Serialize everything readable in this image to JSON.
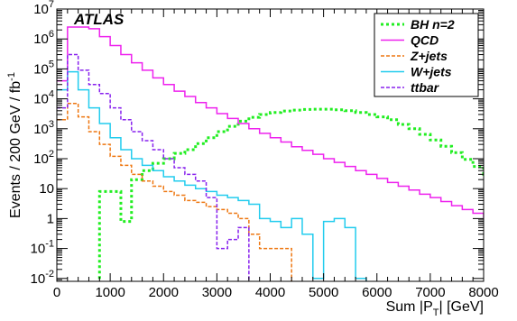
{
  "chart_data": {
    "type": "line",
    "title": "",
    "annotation": "ATLAS",
    "xlabel": "Sum |P",
    "xlabel_sub": "T",
    "xlabel_tail": "| [GeV]",
    "ylabel": "Events /  200 GeV / fb",
    "ylabel_sup": "-1",
    "xlim": [
      0,
      8000
    ],
    "ylim": [
      0.008,
      10000000
    ],
    "log_y": true,
    "grid": false,
    "legend_position": "top-right",
    "bin_width": 200,
    "x_ticks": [
      0,
      1000,
      2000,
      3000,
      4000,
      5000,
      6000,
      7000,
      8000
    ],
    "x_tick_labels": [
      "0",
      "1000",
      "2000",
      "3000",
      "4000",
      "5000",
      "6000",
      "7000",
      "8000"
    ],
    "y_ticks": [
      {
        "value": 0.01,
        "base": "10",
        "exp": "-2",
        "plain": ""
      },
      {
        "value": 0.1,
        "base": "10",
        "exp": "-1",
        "plain": ""
      },
      {
        "value": 1,
        "base": "",
        "exp": "",
        "plain": "1"
      },
      {
        "value": 10,
        "base": "",
        "exp": "",
        "plain": "10"
      },
      {
        "value": 100,
        "base": "10",
        "exp": "2",
        "plain": ""
      },
      {
        "value": 1000,
        "base": "10",
        "exp": "3",
        "plain": ""
      },
      {
        "value": 10000,
        "base": "10",
        "exp": "4",
        "plain": ""
      },
      {
        "value": 100000,
        "base": "10",
        "exp": "5",
        "plain": ""
      },
      {
        "value": 1000000,
        "base": "10",
        "exp": "6",
        "plain": ""
      },
      {
        "value": 10000000,
        "base": "10",
        "exp": "7",
        "plain": ""
      }
    ],
    "series": [
      {
        "name": "BH n=2",
        "color": "#22ee22",
        "style": "dotted",
        "values": [
          0,
          0,
          0,
          0,
          8,
          8,
          0.8,
          20,
          40,
          70,
          100,
          150,
          200,
          320,
          500,
          800,
          1200,
          1800,
          2400,
          3000,
          3500,
          3900,
          4200,
          4400,
          4500,
          4500,
          4300,
          4000,
          3500,
          3000,
          2500,
          2000,
          1400,
          1000,
          650,
          420,
          260,
          160,
          95,
          55,
          30,
          18,
          10,
          8,
          3,
          10,
          3,
          6,
          7,
          4
        ]
      },
      {
        "name": "QCD",
        "color": "#ee22ee",
        "style": "solid",
        "values": [
          40000,
          2500000,
          2500000,
          2200000,
          1200000,
          600000,
          300000,
          160000,
          90000,
          50000,
          30000,
          18000,
          12000,
          7500,
          5000,
          3200,
          2200,
          1500,
          1000,
          700,
          500,
          360,
          250,
          190,
          140,
          100,
          75,
          55,
          40,
          30,
          22,
          16,
          12,
          9,
          6.5,
          5,
          3.7,
          2.7,
          2,
          1.5,
          1.1,
          0.8,
          0.6,
          0.45,
          0.3,
          0.22,
          0.16,
          0.1,
          0.04,
          0.025
        ]
      },
      {
        "name": "Z+jets",
        "color": "#ee7711",
        "style": "dashed",
        "values": [
          2000,
          7000,
          2500,
          800,
          300,
          120,
          60,
          30,
          18,
          12,
          8,
          6,
          4,
          3.5,
          2.5,
          2,
          1.5,
          1,
          0.3,
          0.1,
          0.1,
          0.1,
          0,
          0,
          0,
          0,
          0,
          0,
          0,
          0,
          0,
          0,
          0,
          0,
          0,
          0,
          0,
          0,
          0,
          0,
          0,
          0,
          0,
          0,
          0,
          0,
          0,
          0,
          0,
          0
        ]
      },
      {
        "name": "W+jets",
        "color": "#22ccee",
        "style": "solid",
        "values": [
          20000,
          80000,
          20000,
          5000,
          1500,
          500,
          200,
          100,
          60,
          40,
          25,
          18,
          13,
          10,
          8,
          6,
          5,
          4,
          3,
          1,
          0.8,
          0.5,
          1,
          0.3,
          0.01,
          0.8,
          1,
          0.5,
          0.01,
          0,
          0,
          0,
          0,
          0,
          0,
          0,
          0,
          0,
          0,
          0,
          0,
          0,
          0,
          0,
          0,
          0,
          0,
          0,
          0,
          0
        ]
      },
      {
        "name": "ttbar",
        "color": "#8822ee",
        "style": "dashed",
        "values": [
          5000,
          300000,
          90000,
          30000,
          15000,
          5000,
          2000,
          800,
          400,
          200,
          100,
          50,
          30,
          18,
          5,
          0.1,
          0.2,
          0.5,
          0,
          0,
          0,
          0,
          0,
          0,
          0,
          0,
          0,
          0,
          0,
          0,
          0,
          0,
          0,
          0,
          0,
          0,
          0,
          0,
          0,
          0,
          0,
          0,
          0,
          0,
          0,
          0,
          0,
          0,
          0,
          0
        ]
      }
    ]
  }
}
